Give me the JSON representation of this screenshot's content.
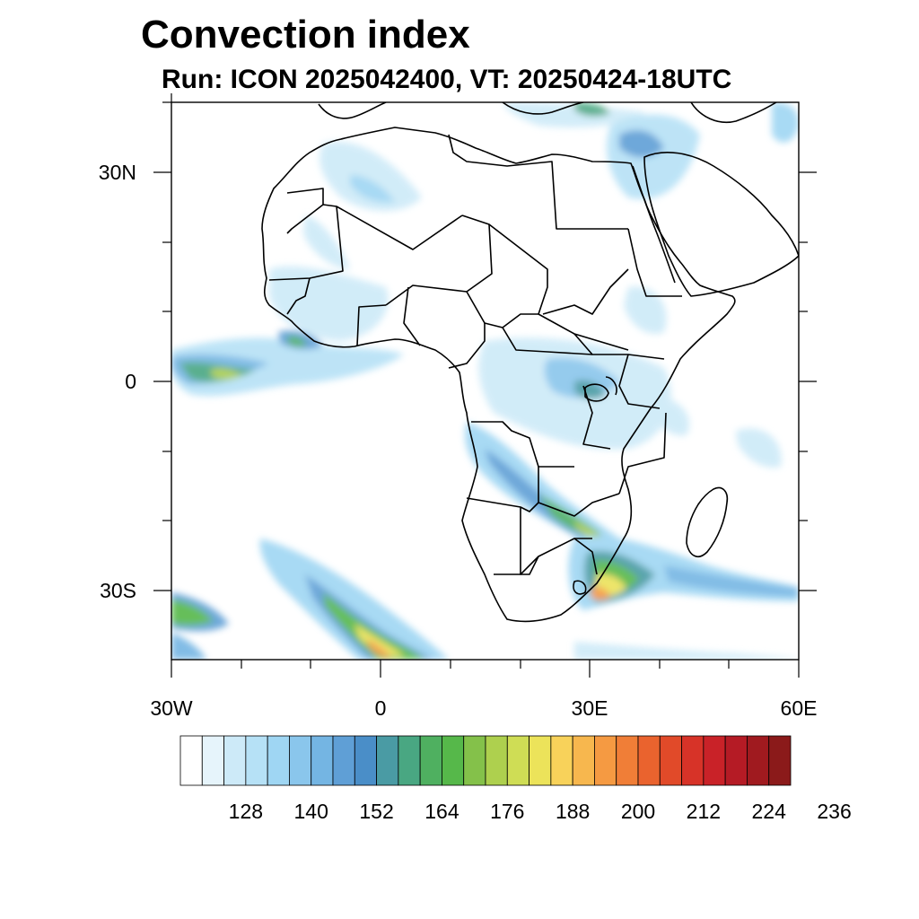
{
  "title": "Convection index",
  "subtitle": "Run: ICON 2025042400,  VT: 20250424-18UTC",
  "map": {
    "lon_range": [
      -30,
      60
    ],
    "lat_range": [
      -40,
      40
    ],
    "x_tick_labels": [
      "30W",
      "0",
      "30E",
      "60E"
    ],
    "y_tick_labels": [
      "30N",
      "0",
      "30S"
    ]
  },
  "colorbar": {
    "labels": [
      "128",
      "140",
      "152",
      "164",
      "176",
      "188",
      "200",
      "212",
      "224",
      "236"
    ],
    "colors": [
      "#ffffff",
      "#e6f4fb",
      "#cdeaf8",
      "#b6e1f6",
      "#9fd6f3",
      "#8ac6ec",
      "#74b5e3",
      "#5f9fd6",
      "#4a8ec8",
      "#4a9ba4",
      "#49a782",
      "#4fb060",
      "#56b84a",
      "#84c14a",
      "#aed04e",
      "#cfdd55",
      "#ece35a",
      "#f8d25a",
      "#f7b74e",
      "#f59a42",
      "#f07e37",
      "#ea632e",
      "#e14a29",
      "#d73328",
      "#c92228",
      "#b51b25",
      "#a01a1f",
      "#8b1a1a"
    ]
  }
}
